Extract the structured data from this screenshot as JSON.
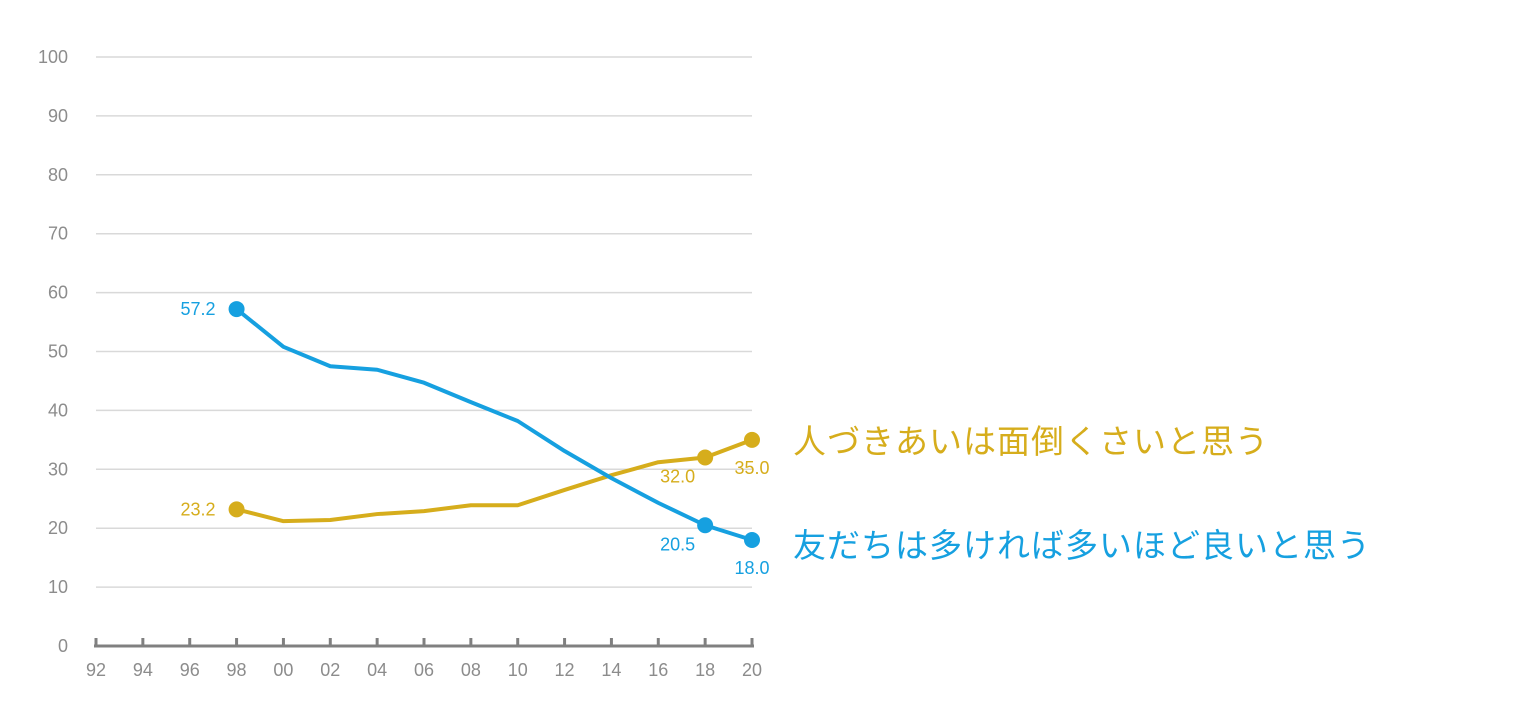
{
  "chart_data": {
    "type": "line",
    "title": "",
    "xlabel": "",
    "ylabel": "",
    "x": [
      "92",
      "94",
      "96",
      "98",
      "00",
      "02",
      "04",
      "06",
      "08",
      "10",
      "12",
      "14",
      "16",
      "18",
      "20"
    ],
    "ylim": [
      0,
      100
    ],
    "yticks": [
      "0",
      "10",
      "20",
      "30",
      "40",
      "50",
      "60",
      "70",
      "80",
      "90",
      "100"
    ],
    "grid": true,
    "series": [
      {
        "name": "人づきあいは面倒くさいと思う",
        "color": "#d6ad1c",
        "values": [
          null,
          null,
          null,
          23.2,
          21.2,
          21.4,
          22.4,
          22.9,
          23.9,
          23.9,
          26.5,
          29.0,
          31.2,
          32.0,
          35.0
        ],
        "labels": {
          "3": "23.2",
          "13": "32.0",
          "14": "35.0"
        }
      },
      {
        "name": "友だちは多ければ多いほど良いと思う",
        "color": "#16a0e0",
        "values": [
          null,
          null,
          null,
          57.2,
          50.8,
          47.5,
          46.9,
          44.7,
          41.4,
          38.2,
          33.1,
          28.5,
          24.3,
          20.5,
          18.0
        ],
        "labels": {
          "3": "57.2",
          "13": "20.5",
          "14": "18.0"
        }
      }
    ]
  }
}
